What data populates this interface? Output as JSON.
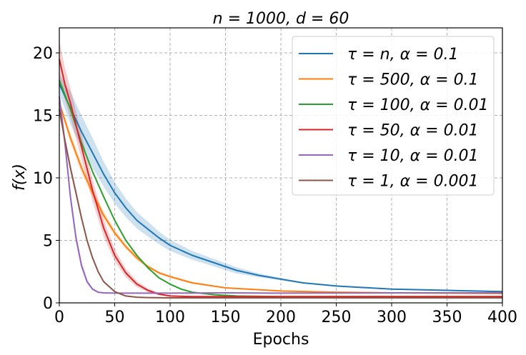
{
  "chart_data": {
    "type": "line",
    "title": "n = 1000,  d = 60",
    "xlabel": "Epochs",
    "ylabel": "f(x)",
    "xlim": [
      0,
      400
    ],
    "ylim": [
      0,
      22
    ],
    "xticks": [
      0,
      50,
      100,
      150,
      200,
      250,
      300,
      350,
      400
    ],
    "yticks": [
      0,
      5,
      10,
      15,
      20
    ],
    "grid": true,
    "legend_position": "top-right",
    "series": [
      {
        "name": "τ = n, α = 0.1",
        "color": "#1f77b4",
        "band": true,
        "x": [
          0,
          10,
          20,
          30,
          40,
          50,
          60,
          70,
          80,
          90,
          100,
          120,
          140,
          160,
          180,
          200,
          220,
          250,
          300,
          350,
          400
        ],
        "y": [
          17.5,
          15.6,
          13.7,
          12.0,
          10.3,
          8.8,
          7.6,
          6.6,
          5.9,
          5.2,
          4.6,
          3.8,
          3.2,
          2.6,
          2.2,
          1.9,
          1.6,
          1.35,
          1.1,
          1.0,
          0.9
        ],
        "spread": [
          0.8,
          1.3,
          1.3,
          1.2,
          1.0,
          0.85,
          0.75,
          0.65,
          0.6,
          0.5,
          0.45,
          0.35,
          0.3,
          0.25,
          0.15,
          0.1,
          0.05,
          0.05,
          0.05,
          0.05,
          0.05
        ]
      },
      {
        "name": "τ = 500, α = 0.1",
        "color": "#ff7f0e",
        "band": true,
        "x": [
          0,
          10,
          20,
          30,
          40,
          50,
          60,
          70,
          80,
          90,
          100,
          120,
          150,
          200,
          250,
          300,
          400
        ],
        "y": [
          16.0,
          13.2,
          10.8,
          8.8,
          7.0,
          5.6,
          4.5,
          3.6,
          2.9,
          2.4,
          2.1,
          1.6,
          1.2,
          0.95,
          0.85,
          0.8,
          0.75
        ],
        "spread": [
          0.3,
          0.4,
          0.4,
          0.35,
          0.3,
          0.25,
          0.2,
          0.2,
          0.15,
          0.1,
          0.1,
          0.08,
          0.05,
          0.05,
          0.05,
          0.05,
          0.05
        ]
      },
      {
        "name": "τ = 100, α = 0.01",
        "color": "#2ca02c",
        "band": false,
        "x": [
          0,
          10,
          20,
          30,
          40,
          50,
          60,
          70,
          80,
          90,
          100,
          110,
          120,
          140,
          160,
          200,
          300,
          400
        ],
        "y": [
          17.8,
          15.5,
          12.8,
          10.5,
          8.5,
          6.6,
          5.0,
          3.8,
          2.8,
          2.0,
          1.5,
          1.1,
          0.85,
          0.65,
          0.55,
          0.5,
          0.5,
          0.5
        ],
        "spread": []
      },
      {
        "name": "τ = 50, α = 0.01",
        "color": "#d62728",
        "band": true,
        "x": [
          0,
          5,
          10,
          20,
          30,
          40,
          50,
          60,
          70,
          80,
          90,
          100,
          120,
          150,
          200,
          300,
          400
        ],
        "y": [
          19.5,
          17.5,
          16.0,
          12.5,
          9.0,
          6.0,
          3.8,
          2.4,
          1.5,
          1.0,
          0.7,
          0.55,
          0.5,
          0.5,
          0.5,
          0.5,
          0.5
        ],
        "spread": [
          1.5,
          1.3,
          1.2,
          1.0,
          0.9,
          0.7,
          0.5,
          0.35,
          0.25,
          0.15,
          0.1,
          0.05,
          0.05,
          0.05,
          0.05,
          0.05,
          0.05
        ]
      },
      {
        "name": "τ = 10, α = 0.01",
        "color": "#9467bd",
        "band": true,
        "x": [
          0,
          5,
          10,
          15,
          20,
          25,
          30,
          35,
          40,
          50,
          60,
          100,
          150,
          200,
          300,
          400
        ],
        "y": [
          16.5,
          12.8,
          8.5,
          5.2,
          3.0,
          1.7,
          1.1,
          0.85,
          0.8,
          0.78,
          0.78,
          0.78,
          0.8,
          0.78,
          0.8,
          0.8
        ],
        "spread": [
          0.5,
          0.6,
          0.5,
          0.4,
          0.3,
          0.2,
          0.1,
          0.05,
          0.05,
          0.05,
          0.05,
          0.05,
          0.05,
          0.05,
          0.05,
          0.05
        ]
      },
      {
        "name": "τ = 1, α = 0.001",
        "color": "#8c564b",
        "band": true,
        "x": [
          0,
          5,
          10,
          15,
          20,
          25,
          30,
          35,
          40,
          50,
          60,
          70,
          80,
          100,
          150,
          200,
          300,
          400
        ],
        "y": [
          15.5,
          13.0,
          10.8,
          8.8,
          6.8,
          5.0,
          3.6,
          2.5,
          1.7,
          0.9,
          0.55,
          0.45,
          0.42,
          0.4,
          0.4,
          0.4,
          0.4,
          0.4
        ],
        "spread": [
          0.4,
          0.4,
          0.35,
          0.3,
          0.25,
          0.2,
          0.15,
          0.1,
          0.08,
          0.05,
          0.05,
          0.05,
          0.05,
          0.05,
          0.05,
          0.05,
          0.05,
          0.05
        ]
      }
    ]
  }
}
